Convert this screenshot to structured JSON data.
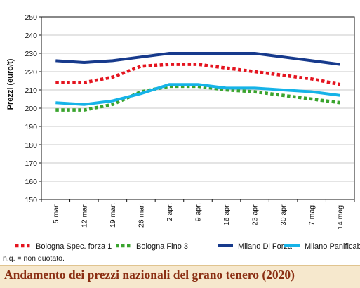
{
  "note": "n.q. = non quotato.",
  "chart_data": {
    "type": "line",
    "title": "Andamento dei prezzi nazionali del grano tenero (2020)",
    "xlabel": "",
    "ylabel": "Prezzi (euro/t)",
    "ylim": [
      150,
      250
    ],
    "yticks": [
      150,
      160,
      170,
      180,
      190,
      200,
      210,
      220,
      230,
      240,
      250
    ],
    "grid": true,
    "legend_position": "bottom",
    "categories": [
      "5 mar.",
      "12 mar.",
      "19 mar.",
      "26 mar.",
      "2 apr.",
      "9 apr.",
      "16 apr.",
      "23 apr.",
      "30 apr.",
      "7 mag.",
      "14 mag."
    ],
    "series": [
      {
        "name": "Bologna Spec. forza 1",
        "color": "#e4141f",
        "style": "dotted",
        "values": [
          214,
          214,
          217,
          223,
          224,
          224,
          222,
          220,
          218,
          216,
          213
        ]
      },
      {
        "name": "Bologna Fino 3",
        "color": "#3aa42e",
        "style": "dotted",
        "values": [
          199,
          199,
          202,
          209,
          212,
          212,
          210,
          209,
          207,
          205,
          203
        ]
      },
      {
        "name": "Milano Di Forza",
        "color": "#173a8c",
        "style": "solid",
        "values": [
          226,
          225,
          226,
          228,
          230,
          230,
          230,
          230,
          228,
          226,
          224
        ]
      },
      {
        "name": "Milano Panificabile",
        "color": "#16b3e8",
        "style": "solid",
        "values": [
          203,
          202,
          204,
          208,
          213,
          213,
          211,
          211,
          210,
          209,
          207
        ]
      }
    ]
  }
}
